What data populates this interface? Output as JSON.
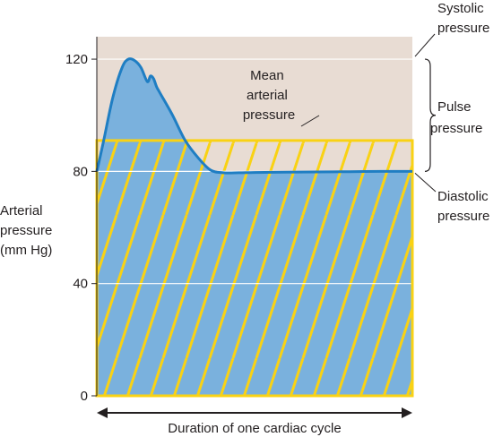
{
  "chart_data": {
    "type": "area",
    "y_axis": {
      "label_lines": [
        "Arterial",
        "pressure",
        "(mm Hg)"
      ],
      "range": [
        0,
        128
      ],
      "ticks": [
        {
          "value": 0,
          "label": "0"
        },
        {
          "value": 40,
          "label": "40"
        },
        {
          "value": 80,
          "label": "80"
        },
        {
          "value": 120,
          "label": "120"
        }
      ]
    },
    "x_axis": {
      "label": "Duration of one cardiac cycle",
      "range": [
        0,
        1
      ]
    },
    "pressure_curve": {
      "x": [
        0,
        0.02,
        0.05,
        0.08,
        0.1,
        0.12,
        0.14,
        0.16,
        0.17,
        0.18,
        0.19,
        0.2,
        0.24,
        0.28,
        0.32,
        0.36,
        0.4,
        0.45,
        0.5,
        0.6,
        0.7,
        0.8,
        0.9,
        1.0
      ],
      "y": [
        80,
        90,
        106,
        117,
        120,
        119.5,
        117,
        112,
        114,
        113,
        110,
        108,
        100,
        91,
        85,
        80.5,
        79.5,
        79.5,
        79.6,
        79.7,
        79.8,
        79.9,
        80,
        80
      ]
    },
    "levels": {
      "systolic": 120,
      "diastolic": 80,
      "mean": 91
    },
    "annotations": {
      "systolic": [
        "Systolic",
        "pressure"
      ],
      "pulse": [
        "Pulse",
        "pressure"
      ],
      "diastolic": [
        "Diastolic",
        "pressure"
      ],
      "mean": [
        "Mean",
        "arterial",
        "pressure"
      ]
    },
    "colors": {
      "background_band": "#e8dcd3",
      "curve_fill": "#7ab1dd",
      "curve_line": "#1f7ec3",
      "mean_hatch": "#f9d214",
      "gridline": "#ffffff",
      "ink": "#231f20"
    }
  }
}
